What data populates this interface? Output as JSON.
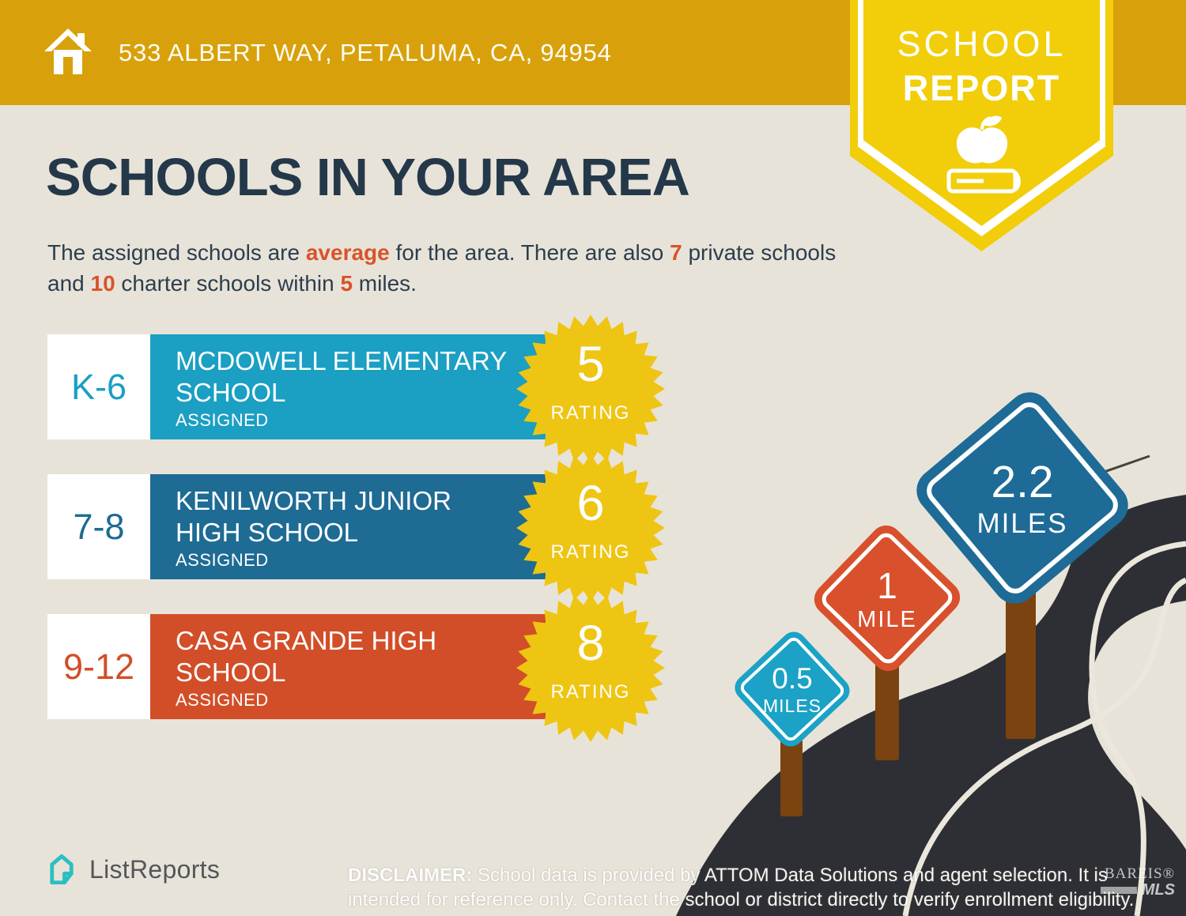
{
  "header": {
    "address": "533 ALBERT WAY, PETALUMA, CA, 94954"
  },
  "badge": {
    "line1": "SCHOOL",
    "line2": "REPORT"
  },
  "title": "SCHOOLS IN YOUR AREA",
  "intro": {
    "part1": "The assigned schools are ",
    "highlight1": "average",
    "part2": " for the area. There are also ",
    "highlight2": "7",
    "part3": " private schools and ",
    "highlight3": "10",
    "part4": " charter schools within ",
    "highlight4": "5",
    "part5": " miles."
  },
  "rating_label": "RATING",
  "schools": [
    {
      "grades": "K-6",
      "name": "MCDOWELL ELEMENTARY SCHOOL",
      "status": "ASSIGNED",
      "rating": "5",
      "color": "#1b9fc3"
    },
    {
      "grades": "7-8",
      "name": "KENILWORTH JUNIOR HIGH SCHOOL",
      "status": "ASSIGNED",
      "rating": "6",
      "color": "#1e6b94"
    },
    {
      "grades": "9-12",
      "name": "CASA GRANDE HIGH SCHOOL",
      "status": "ASSIGNED",
      "rating": "8",
      "color": "#d24e28"
    }
  ],
  "distance_signs": [
    {
      "value": "0.5",
      "unit": "MILES",
      "color": "#1ba2c6"
    },
    {
      "value": "1",
      "unit": "MILE",
      "color": "#d9502c"
    },
    {
      "value": "2.2",
      "unit": "MILES",
      "color": "#1d6b96"
    }
  ],
  "footer": {
    "logo_text": "ListReports",
    "disclaimer_label": "DISCLAIMER:",
    "disclaimer_text": " School data is provided by ATTOM Data Solutions and agent selection. It is intended for reference only. Contact the school or district directly to verify enrollment eligibility.",
    "watermark_line1": "BAREIS®",
    "watermark_line2": "MLS"
  },
  "colors": {
    "topbar_gold": "#d8a10b",
    "pennant_yellow": "#f2cd0a",
    "starburst_yellow": "#eec513",
    "background_beige": "#e8e3d8",
    "heading_navy": "#24384a",
    "accent_orange": "#d9532b",
    "road_dark": "#2e2f34",
    "road_line": "#ece7dc",
    "post_brown": "#7a430f",
    "logo_teal": "#2abfc3"
  }
}
